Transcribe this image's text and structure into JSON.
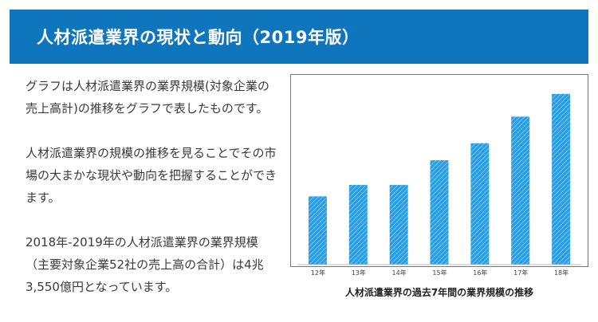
{
  "header": {
    "title": "人材派遣業界の現状と動向（2019年版）"
  },
  "body": {
    "paragraphs": [
      "グラフは人材派遣業界の業界規模(対象企業の売上高計)の推移をグラフで表したものです。",
      "人材派遣業界の規模の推移を見ることでその市場の大まかな現状や動向を把握することができます。",
      "2018年-2019年の人材派遣業界の業界規模（主要対象企業52社の売上高の合計）は4兆3,550億円となっています。"
    ]
  },
  "chart_data": {
    "type": "bar",
    "title": "人材派遣業界の過去7年間の業界規模の推移",
    "categories": [
      "12年",
      "13年",
      "14年",
      "15年",
      "16年",
      "17年",
      "18年"
    ],
    "values": [
      36,
      42,
      42,
      55,
      64,
      78,
      90
    ],
    "ylim": [
      0,
      100
    ],
    "grid": false,
    "bar_color": "#2a9fe3",
    "bar_pattern": "diagonal-hatch"
  }
}
